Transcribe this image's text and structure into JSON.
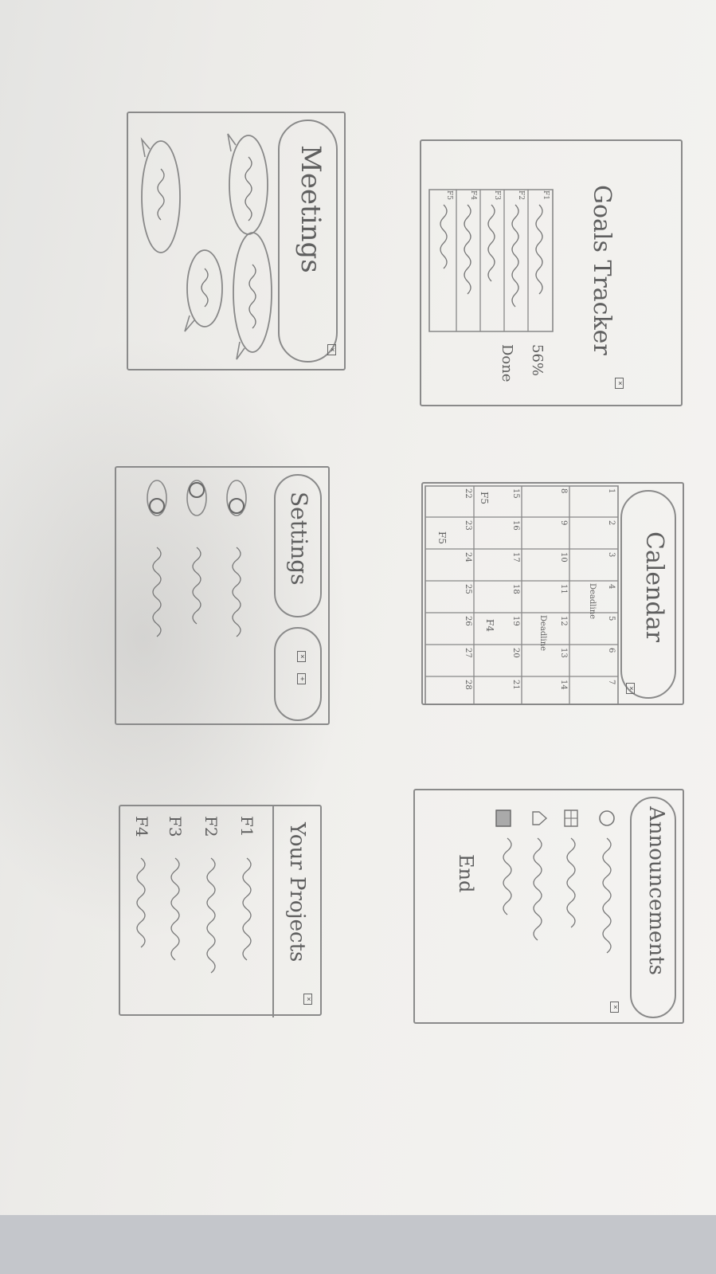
{
  "goals_tracker": {
    "title": "Goals Tracker",
    "progress_value": "56%",
    "progress_label": "Done",
    "row_labels": [
      "F1",
      "F2",
      "F3",
      "F4",
      "F5"
    ]
  },
  "calendar": {
    "title": "Calendar",
    "row1": [
      "1",
      "2",
      "3",
      "4",
      "5",
      "6",
      "7"
    ],
    "row2": [
      "8",
      "9",
      "10",
      "11",
      "12",
      "13",
      "14"
    ],
    "row3": [
      "15",
      "16",
      "17",
      "18",
      "19",
      "20",
      "21"
    ],
    "row4": [
      "22",
      "23",
      "24",
      "25",
      "26",
      "27",
      "28"
    ],
    "annotations": {
      "deadline_1": "Deadline",
      "deadline_2": "Deadline",
      "f5_a": "F5",
      "f4": "F4",
      "f5_b": "F5"
    }
  },
  "announcements": {
    "title": "Announcements",
    "footer": "End"
  },
  "meetings": {
    "title": "Meetings"
  },
  "settings": {
    "title": "Settings"
  },
  "projects": {
    "title": "Your Projects",
    "items": [
      "F1",
      "F2",
      "F3",
      "F4"
    ]
  }
}
